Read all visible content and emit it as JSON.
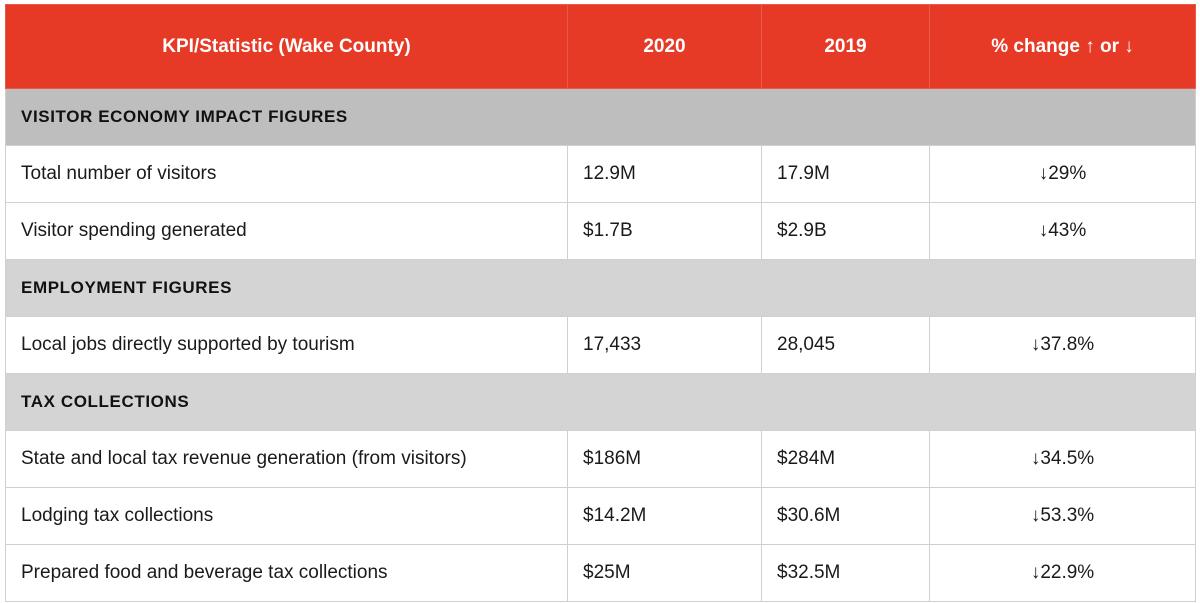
{
  "colors": {
    "header_bg": "#e63a26",
    "section_dark": "#bebebe",
    "section_light": "#d4d4d4"
  },
  "headers": [
    "KPI/Statistic (Wake County)",
    "2020",
    "2019",
    "% change ↑ or  ↓"
  ],
  "sections": [
    {
      "title": "VISITOR ECONOMY IMPACT FIGURES",
      "rows": [
        [
          "Total number of visitors",
          "12.9M",
          "17.9M",
          "↓29%"
        ],
        [
          "Visitor spending generated",
          "$1.7B",
          "$2.9B",
          "↓43%"
        ]
      ]
    },
    {
      "title": "EMPLOYMENT FIGURES",
      "rows": [
        [
          "Local jobs directly supported by tourism",
          "17,433",
          "28,045",
          "↓37.8%"
        ]
      ]
    },
    {
      "title": "TAX COLLECTIONS",
      "rows": [
        [
          "State and local tax revenue generation (from visitors)",
          "$186M",
          "$284M",
          "↓34.5%"
        ],
        [
          "Lodging tax collections",
          "$14.2M",
          "$30.6M",
          "↓53.3%"
        ],
        [
          "Prepared food and beverage tax collections",
          "$25M",
          "$32.5M",
          "↓22.9%"
        ]
      ]
    }
  ]
}
